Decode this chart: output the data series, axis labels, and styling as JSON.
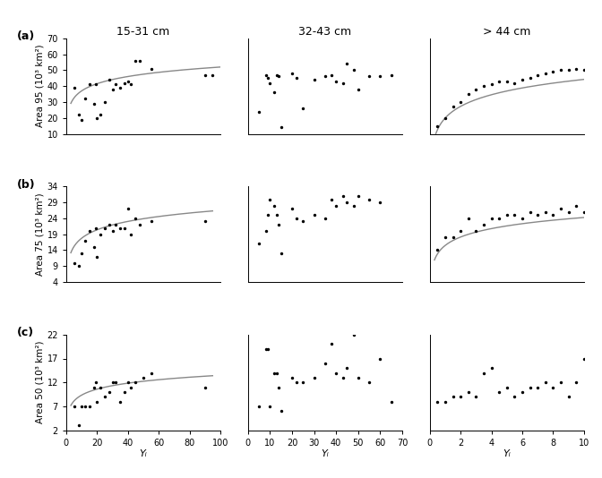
{
  "titles": [
    "15-31 cm",
    "32-43 cm",
    "> 44 cm"
  ],
  "row_labels": [
    "(a)",
    "(b)",
    "(c)"
  ],
  "ylabels": [
    "Area 95 (10³ km²)",
    "Area 75 (10³ km²)",
    "Area 50 (10³ km²)"
  ],
  "xlabel": "Yᵢ",
  "scatter": {
    "a1": {
      "x": [
        5,
        8,
        10,
        12,
        15,
        18,
        19,
        20,
        22,
        25,
        28,
        30,
        32,
        35,
        38,
        40,
        42,
        45,
        48,
        55,
        90,
        95
      ],
      "y": [
        39,
        22,
        19,
        32,
        41,
        29,
        41,
        20,
        22,
        30,
        44,
        38,
        41,
        39,
        42,
        43,
        41,
        56,
        56,
        51,
        47,
        47
      ]
    },
    "a2": {
      "x": [
        5,
        8,
        9,
        10,
        12,
        13,
        14,
        15,
        20,
        22,
        25,
        30,
        35,
        38,
        40,
        43,
        45,
        48,
        50,
        55,
        60,
        65
      ],
      "y": [
        24,
        47,
        45,
        42,
        36,
        47,
        46,
        14,
        48,
        45,
        26,
        44,
        46,
        47,
        43,
        42,
        54,
        50,
        38,
        46,
        46,
        47
      ]
    },
    "a3": {
      "x": [
        0.5,
        1,
        1.5,
        2,
        2.5,
        3,
        3.5,
        4,
        4.5,
        5,
        5.5,
        6,
        6.5,
        7,
        7.5,
        8,
        8.5,
        9,
        9.5,
        10
      ],
      "y": [
        15,
        20,
        27,
        30,
        35,
        38,
        40,
        41,
        43,
        43,
        42,
        44,
        45,
        47,
        48,
        49,
        50,
        50,
        51,
        50
      ]
    },
    "b1": {
      "x": [
        5,
        8,
        10,
        12,
        15,
        18,
        19,
        20,
        22,
        25,
        28,
        30,
        32,
        35,
        38,
        40,
        42,
        45,
        48,
        55,
        90
      ],
      "y": [
        10,
        9,
        13,
        17,
        20,
        15,
        21,
        12,
        19,
        21,
        22,
        20,
        22,
        21,
        21,
        27,
        19,
        24,
        22,
        23,
        23
      ]
    },
    "b2": {
      "x": [
        5,
        8,
        9,
        10,
        12,
        13,
        14,
        15,
        20,
        22,
        25,
        30,
        35,
        38,
        40,
        43,
        45,
        48,
        50,
        55,
        60
      ],
      "y": [
        16,
        20,
        25,
        30,
        28,
        25,
        22,
        13,
        27,
        24,
        23,
        25,
        24,
        30,
        28,
        31,
        29,
        28,
        31,
        30,
        29
      ]
    },
    "b3": {
      "x": [
        0.5,
        1,
        1.5,
        2,
        2.5,
        3,
        3.5,
        4,
        4.5,
        5,
        5.5,
        6,
        6.5,
        7,
        7.5,
        8,
        8.5,
        9,
        9.5,
        10
      ],
      "y": [
        14,
        18,
        18,
        20,
        24,
        20,
        22,
        24,
        24,
        25,
        25,
        24,
        26,
        25,
        26,
        25,
        27,
        26,
        28,
        26
      ]
    },
    "c1": {
      "x": [
        5,
        8,
        10,
        12,
        15,
        18,
        19,
        20,
        22,
        25,
        28,
        30,
        32,
        35,
        38,
        40,
        42,
        45,
        50,
        55,
        90
      ],
      "y": [
        7,
        3,
        7,
        7,
        7,
        11,
        12,
        8,
        11,
        9,
        10,
        12,
        12,
        8,
        10,
        12,
        11,
        12,
        13,
        14,
        11
      ]
    },
    "c2": {
      "x": [
        5,
        8,
        9,
        10,
        12,
        13,
        14,
        15,
        20,
        22,
        25,
        30,
        35,
        38,
        40,
        43,
        45,
        48,
        50,
        55,
        60,
        65
      ],
      "y": [
        7,
        19,
        19,
        7,
        14,
        14,
        11,
        6,
        13,
        12,
        12,
        13,
        16,
        20,
        14,
        13,
        15,
        22,
        13,
        12,
        17,
        8
      ]
    },
    "c3": {
      "x": [
        0.5,
        1,
        1.5,
        2,
        2.5,
        3,
        3.5,
        4,
        4.5,
        5,
        5.5,
        6,
        6.5,
        7,
        7.5,
        8,
        8.5,
        9,
        9.5,
        10
      ],
      "y": [
        8,
        8,
        9,
        9,
        10,
        9,
        14,
        15,
        10,
        11,
        9,
        10,
        11,
        11,
        12,
        11,
        12,
        9,
        12,
        17
      ]
    }
  },
  "curves": {
    "a1": {
      "type": "log",
      "a": 22.0,
      "b": 6.5,
      "xmin": 3,
      "xmax": 100
    },
    "a3": {
      "type": "log",
      "a": 20.0,
      "b": 10.5,
      "xmin": 0.3,
      "xmax": 10
    },
    "b1": {
      "type": "log",
      "a": 9.0,
      "b": 3.8,
      "xmin": 3,
      "xmax": 95
    },
    "b3": {
      "type": "log",
      "a": 15.5,
      "b": 3.8,
      "xmin": 0.3,
      "xmax": 10
    },
    "c1": {
      "type": "log",
      "a": 5.2,
      "b": 1.8,
      "xmin": 3,
      "xmax": 95
    }
  },
  "ylims": {
    "a1": [
      10,
      70
    ],
    "a2": [
      10,
      70
    ],
    "a3": [
      10,
      70
    ],
    "b1": [
      4,
      34
    ],
    "b2": [
      4,
      34
    ],
    "b3": [
      4,
      34
    ],
    "c1": [
      2,
      22
    ],
    "c2": [
      2,
      22
    ],
    "c3": [
      2,
      22
    ]
  },
  "xlims": {
    "a1": [
      0,
      100
    ],
    "a2": [
      0,
      70
    ],
    "a3": [
      0,
      10
    ],
    "b1": [
      0,
      100
    ],
    "b2": [
      0,
      70
    ],
    "b3": [
      0,
      10
    ],
    "c1": [
      0,
      100
    ],
    "c2": [
      0,
      70
    ],
    "c3": [
      0,
      10
    ]
  },
  "yticks": {
    "a": [
      10,
      20,
      30,
      40,
      50,
      60,
      70
    ],
    "b": [
      4,
      9,
      14,
      19,
      24,
      29,
      34
    ],
    "c": [
      2,
      7,
      12,
      17,
      22
    ]
  },
  "xticks": {
    "col1": [
      0,
      20,
      40,
      60,
      80,
      100
    ],
    "col2": [
      0,
      10,
      20,
      30,
      40,
      50,
      60,
      70
    ],
    "col3": [
      0,
      2,
      4,
      6,
      8,
      10
    ]
  },
  "bg_color": "#f0f0f0"
}
